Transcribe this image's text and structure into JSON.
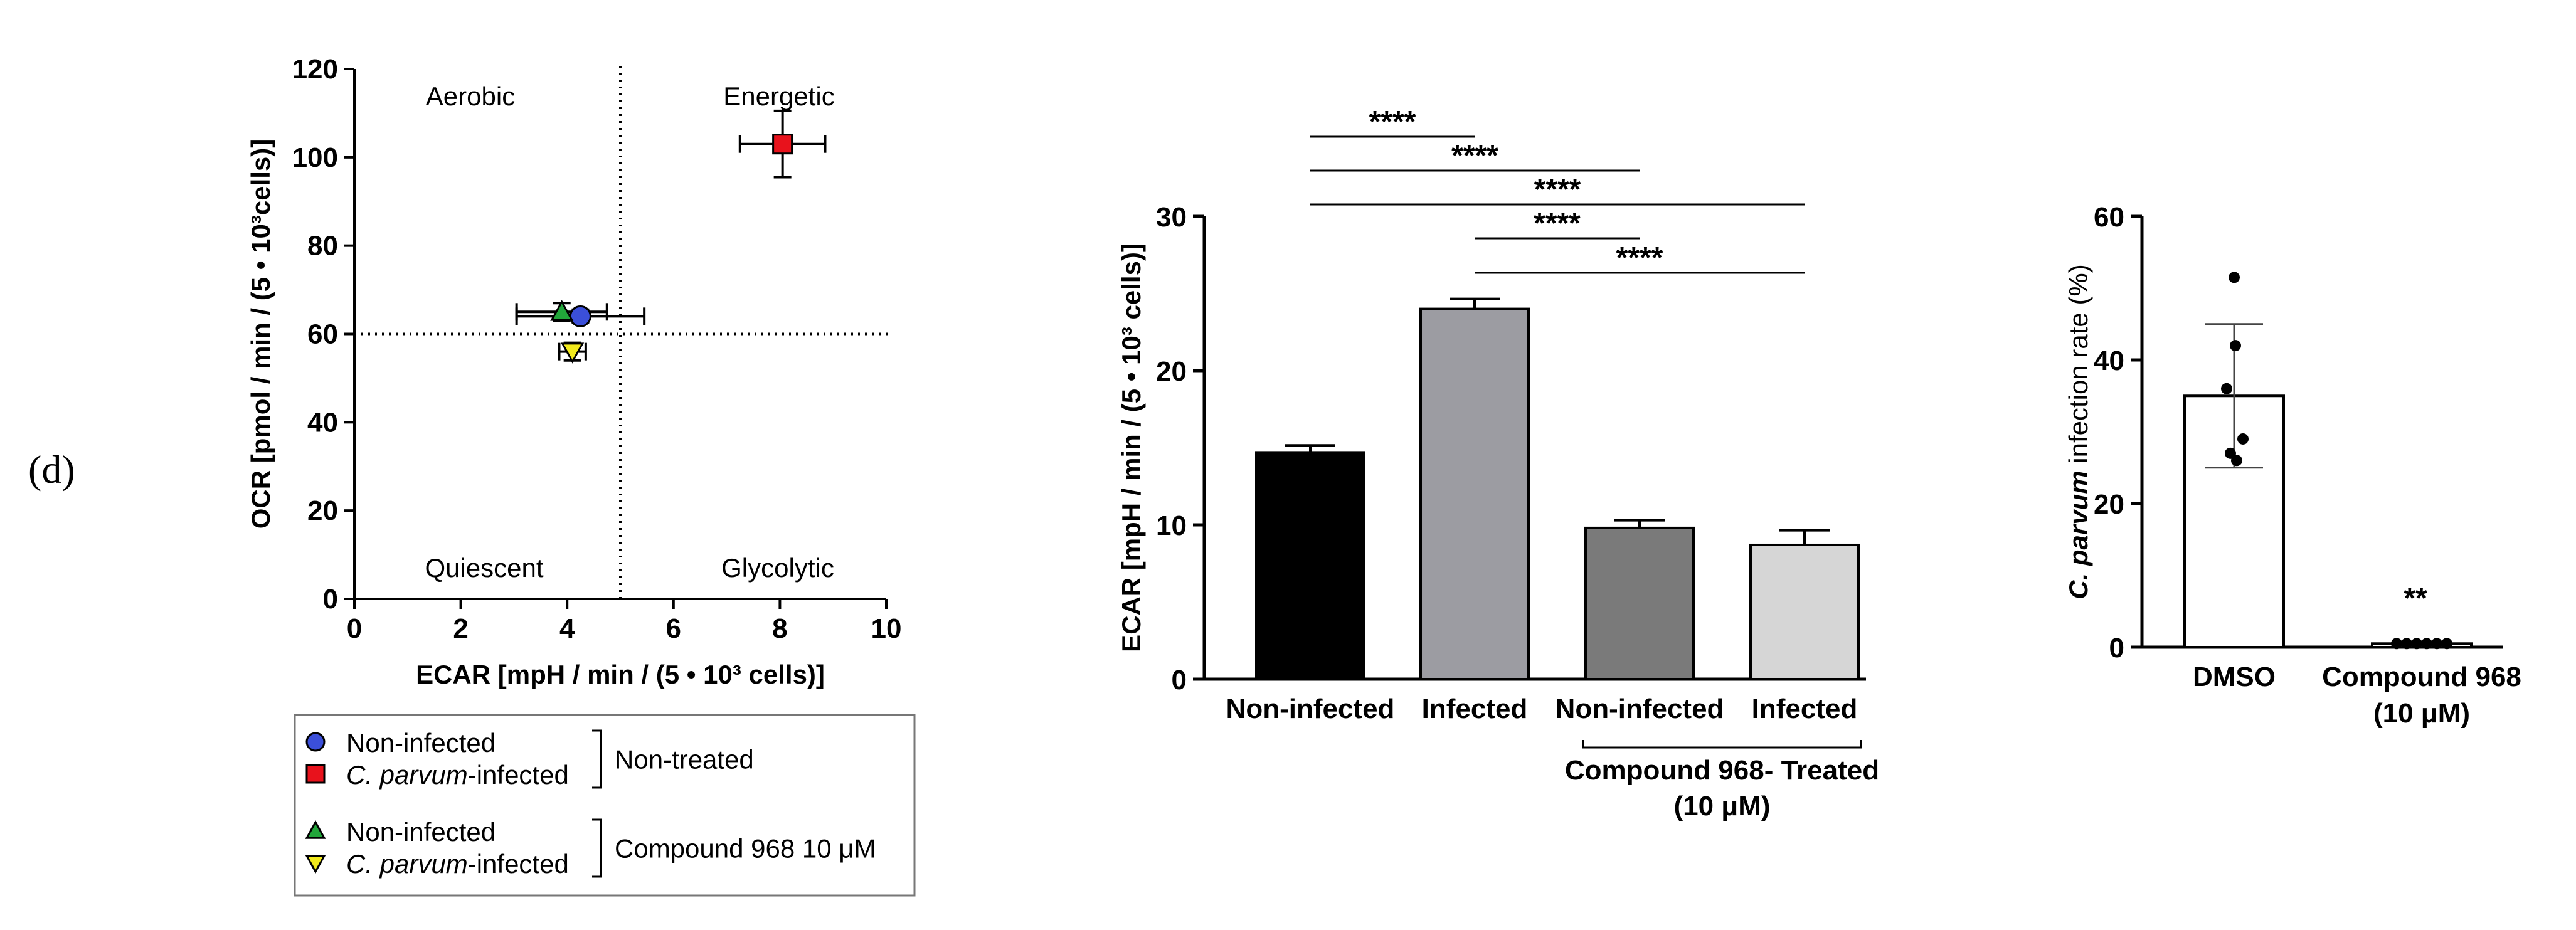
{
  "panel_label": "(d)",
  "chart_data": [
    {
      "type": "scatter",
      "xlabel": "ECAR [mpH / min / (5 • 10³ cells)]",
      "ylabel": "OCR [pmol / min / (5 • 10³cells)]",
      "xlim": [
        0,
        10
      ],
      "ylim": [
        0,
        120
      ],
      "xticks": [
        "0",
        "2",
        "4",
        "6",
        "8",
        "10"
      ],
      "yticks": [
        "0",
        "20",
        "40",
        "60",
        "80",
        "100",
        "120"
      ],
      "reference_lines": {
        "x": 5,
        "y": 60
      },
      "quadrant_labels": [
        "Aerobic",
        "Energetic",
        "Quiescent",
        "Glycolytic"
      ],
      "points": [
        {
          "name": "Non-infected, Non-treated",
          "x": 4.25,
          "y": 64,
          "xerr": 1.2,
          "yerr": 1.5,
          "marker": "circle",
          "color": "#3b4fd9"
        },
        {
          "name": "C. parvum-infected, Non-treated",
          "x": 8.05,
          "y": 103,
          "xerr": 0.8,
          "yerr": 7.5,
          "marker": "square",
          "color": "#e8121c"
        },
        {
          "name": "Non-infected, Compound 968 10 μM",
          "x": 3.9,
          "y": 65,
          "xerr": 0.85,
          "yerr": 2.0,
          "marker": "triangle-up",
          "color": "#22a63a"
        },
        {
          "name": "C. parvum-infected, Compound 968 10 μM",
          "x": 4.1,
          "y": 56,
          "xerr": 0.25,
          "yerr": 2.0,
          "marker": "triangle-down",
          "color": "#f2ea1c"
        }
      ],
      "legend": {
        "groups": [
          {
            "bracket": "Non-treated",
            "items": [
              {
                "label": "Non-infected",
                "italic_prefix": "",
                "marker": "circle",
                "color": "#3b4fd9"
              },
              {
                "label": "-infected",
                "italic_prefix": "C. parvum",
                "marker": "square",
                "color": "#e8121c"
              }
            ]
          },
          {
            "bracket": "Compound 968 10 μM",
            "items": [
              {
                "label": "Non-infected",
                "italic_prefix": "",
                "marker": "triangle-up",
                "color": "#22a63a"
              },
              {
                "label": "-infected",
                "italic_prefix": "C. parvum",
                "marker": "triangle-down",
                "color": "#f2ea1c"
              }
            ]
          }
        ]
      }
    },
    {
      "type": "bar",
      "ylabel": "ECAR [mpH / min / (5 • 10³ cells)]",
      "ylim": [
        0,
        30
      ],
      "yticks": [
        "0",
        "10",
        "20",
        "30"
      ],
      "categories": [
        "Non-infected",
        "Infected",
        "Non-infected",
        "Infected"
      ],
      "values": [
        14.7,
        24.0,
        9.8,
        8.7
      ],
      "errors": [
        0.45,
        0.65,
        0.5,
        0.95
      ],
      "colors": [
        "#000000",
        "#9c9ca2",
        "#7a7a7a",
        "#d6d6d6"
      ],
      "group_label": "Compound 968- Treated",
      "group_sublabel": "(10 μM)",
      "group_span": [
        2,
        3
      ],
      "significance": [
        {
          "from": 0,
          "to": 1,
          "label": "****"
        },
        {
          "from": 0,
          "to": 2,
          "label": "****"
        },
        {
          "from": 0,
          "to": 3,
          "label": "****"
        },
        {
          "from": 1,
          "to": 2,
          "label": "****"
        },
        {
          "from": 1,
          "to": 3,
          "label": "****"
        }
      ]
    },
    {
      "type": "bar",
      "ylabel_italic": "C. parvum",
      "ylabel_rest": "infection rate (%)",
      "ylim": [
        0,
        60
      ],
      "yticks": [
        "0",
        "20",
        "40",
        "60"
      ],
      "categories": [
        "DMSO",
        "Compound 968"
      ],
      "category_sublabels": [
        "",
        "(10 μM)"
      ],
      "values": [
        35,
        0.5
      ],
      "sd": [
        10,
        0.3
      ],
      "points": [
        [
          51.5,
          42,
          36,
          29,
          27,
          26
        ],
        [
          0.5,
          0.5,
          0.5,
          0.5,
          0.5,
          0.5
        ]
      ],
      "annotation": "**"
    }
  ]
}
